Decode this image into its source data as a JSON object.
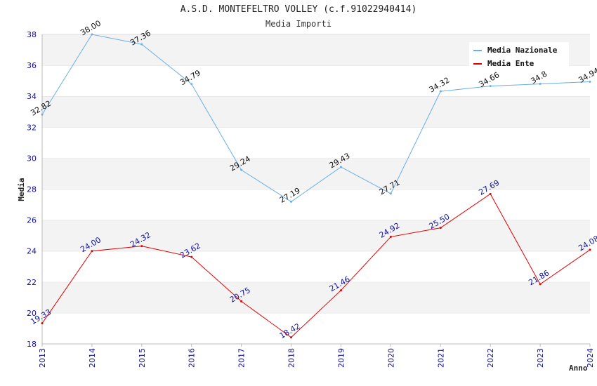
{
  "header": {
    "title": "A.S.D. MONTEFELTRO VOLLEY (c.f.91022940414)",
    "subtitle": "Media Importi"
  },
  "chart_data": {
    "type": "line",
    "title": "A.S.D. MONTEFELTRO VOLLEY (c.f.91022940414)",
    "subtitle": "Media Importi",
    "xlabel": "Anno",
    "ylabel": "Media",
    "x": [
      "2013",
      "2014",
      "2015",
      "2016",
      "2017",
      "2018",
      "2019",
      "2020",
      "2021",
      "2022",
      "2023",
      "2024"
    ],
    "ylim": [
      18,
      38
    ],
    "yticks": [
      18,
      20,
      22,
      24,
      26,
      28,
      30,
      32,
      34,
      36,
      38
    ],
    "grid": "horizontal bands",
    "legend_position": "top-right",
    "series": [
      {
        "name": "Media Nazionale",
        "color": "#6aaee8",
        "values": [
          32.82,
          38.0,
          37.36,
          34.79,
          29.24,
          27.19,
          29.43,
          27.71,
          34.32,
          34.66,
          34.8,
          34.94
        ],
        "labels": [
          "32.82",
          "38.00",
          "37.36",
          "34.79",
          "29.24",
          "27.19",
          "29.43",
          "27.71",
          "34.32",
          "34.66",
          "34.8",
          "34.94"
        ]
      },
      {
        "name": "Media Ente",
        "color": "#e00000",
        "values": [
          19.33,
          24.0,
          24.32,
          23.62,
          20.75,
          18.42,
          21.46,
          24.92,
          25.5,
          27.69,
          21.86,
          24.08
        ],
        "labels": [
          "19.33",
          "24.00",
          "24.32",
          "23.62",
          "20.75",
          "18.42",
          "21.46",
          "24.92",
          "25.50",
          "27.69",
          "21.86",
          "24.08"
        ]
      }
    ]
  }
}
